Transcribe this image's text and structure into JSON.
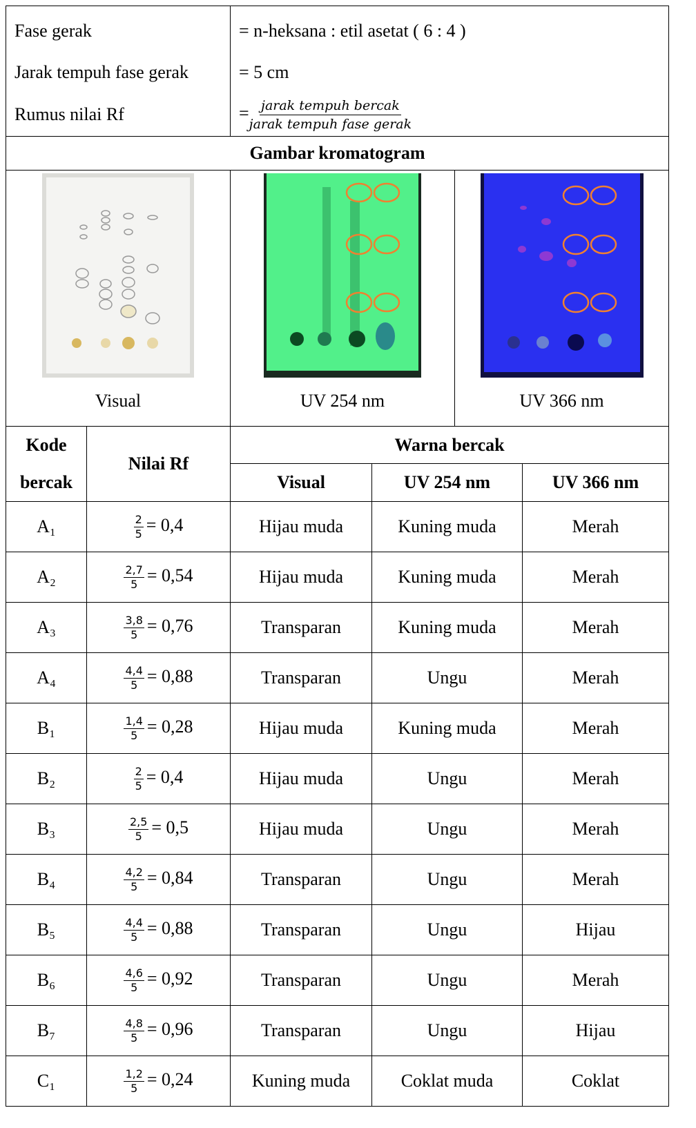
{
  "info": [
    {
      "label": "Fase gerak",
      "value": "= n-heksana : etil asetat ( 6 : 4 )"
    },
    {
      "label": "Jarak tempuh fase gerak",
      "value": "= 5 cm"
    },
    {
      "label": "Rumus nilai Rf",
      "formula": {
        "sign": "=",
        "numerator": "jarak tempuh bercak",
        "denominator": "jarak tempuh fase gerak"
      }
    }
  ],
  "gallery": {
    "title": "Gambar kromatogram",
    "captions": [
      "Visual",
      "UV 254 nm",
      "UV 366 nm"
    ]
  },
  "table": {
    "headers": {
      "code": "Kode bercak",
      "rf": "Nilai Rf",
      "color": "Warna bercak",
      "visual": "Visual",
      "uv254": "UV 254 nm",
      "uv366": "UV 366 nm"
    },
    "rows": [
      {
        "code": "A₁",
        "num": "2",
        "den": "5",
        "result": "= 0,4",
        "visual": "Hijau muda",
        "uv254": "Kuning muda",
        "uv366": "Merah"
      },
      {
        "code": "A₂",
        "num": "2,7",
        "den": "5",
        "result": "= 0,54",
        "visual": "Hijau muda",
        "uv254": "Kuning muda",
        "uv366": "Merah"
      },
      {
        "code": "A₃",
        "num": "3,8",
        "den": "5",
        "result": "= 0,76",
        "visual": "Transparan",
        "uv254": "Kuning muda",
        "uv366": "Merah"
      },
      {
        "code": "A₄",
        "num": "4,4",
        "den": "5",
        "result": "= 0,88",
        "visual": "Transparan",
        "uv254": "Ungu",
        "uv366": "Merah"
      },
      {
        "code": "B₁",
        "num": "1,4",
        "den": "5",
        "result": "= 0,28",
        "visual": "Hijau muda",
        "uv254": "Kuning muda",
        "uv366": "Merah"
      },
      {
        "code": "B₂",
        "num": "2",
        "den": "5",
        "result": "= 0,4",
        "visual": "Hijau muda",
        "uv254": "Ungu",
        "uv366": "Merah"
      },
      {
        "code": "B₃",
        "num": "2,5",
        "den": "5",
        "result": "= 0,5",
        "visual": "Hijau muda",
        "uv254": "Ungu",
        "uv366": "Merah"
      },
      {
        "code": "B₄",
        "num": "4,2",
        "den": "5",
        "result": "= 0,84",
        "visual": "Transparan",
        "uv254": "Ungu",
        "uv366": "Merah"
      },
      {
        "code": "B₅",
        "num": "4,4",
        "den": "5",
        "result": "= 0,88",
        "visual": "Transparan",
        "uv254": "Ungu",
        "uv366": "Hijau"
      },
      {
        "code": "B₆",
        "num": "4,6",
        "den": "5",
        "result": "= 0,92",
        "visual": "Transparan",
        "uv254": "Ungu",
        "uv366": "Merah"
      },
      {
        "code": "B₇",
        "num": "4,8",
        "den": "5",
        "result": "= 0,96",
        "visual": "Transparan",
        "uv254": "Ungu",
        "uv366": "Hijau"
      },
      {
        "code": "C₁",
        "num": "1,2",
        "den": "5",
        "result": "= 0,24",
        "visual": "Kuning muda",
        "uv254": "Coklat muda",
        "uv366": "Coklat"
      }
    ]
  }
}
